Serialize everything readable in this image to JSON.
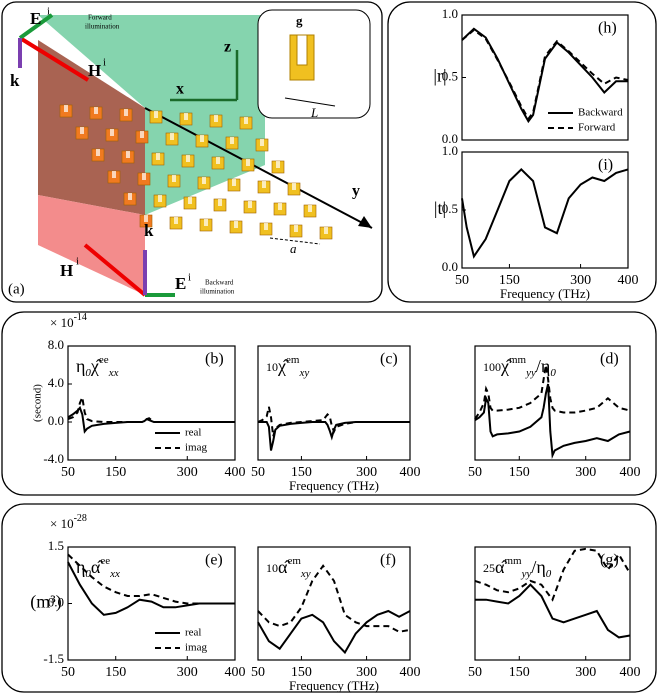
{
  "illustration": {
    "labels": [
      "E",
      "i",
      "Forward",
      "illumination",
      "H",
      "i",
      "k",
      "z",
      "x",
      "g",
      "L",
      "y",
      "a",
      "k",
      "H",
      "i",
      "E",
      "i",
      "Backward",
      "illumination",
      "(a)"
    ]
  },
  "chart_data": [
    {
      "type": "line",
      "panel_label": "(h)",
      "ylabel": "|r|",
      "x": [
        50,
        75,
        100,
        125,
        150,
        175,
        190,
        200,
        225,
        250,
        275,
        300,
        325,
        350,
        375,
        400
      ],
      "xlim": [
        50,
        400
      ],
      "ylim": [
        0,
        1
      ],
      "yticks": [
        {
          "value": 0,
          "label": "0.0"
        },
        {
          "value": 0.5,
          "label": "0.5"
        },
        {
          "value": 1,
          "label": "1.0"
        }
      ],
      "legend": "lower right",
      "series": [
        {
          "name": "Backward",
          "color": "#000",
          "style": "solid",
          "values": [
            0.8,
            0.89,
            0.82,
            0.65,
            0.45,
            0.25,
            0.15,
            0.2,
            0.65,
            0.78,
            0.7,
            0.6,
            0.5,
            0.38,
            0.47,
            0.47
          ]
        },
        {
          "name": "Forward",
          "color": "#000",
          "style": "dashed",
          "values": [
            0.8,
            0.88,
            0.81,
            0.64,
            0.46,
            0.27,
            0.17,
            0.22,
            0.67,
            0.79,
            0.71,
            0.62,
            0.53,
            0.45,
            0.5,
            0.48
          ]
        }
      ]
    },
    {
      "type": "line",
      "panel_label": "(i)",
      "ylabel": "|t|",
      "xlabel": "Frequency (THz)",
      "x": [
        50,
        60,
        75,
        100,
        125,
        150,
        175,
        200,
        225,
        250,
        275,
        300,
        325,
        350,
        375,
        400
      ],
      "xlim": [
        50,
        400
      ],
      "xticks": [
        50,
        150,
        300,
        400
      ],
      "ylim": [
        0,
        1
      ],
      "yticks": [
        {
          "value": 0,
          "label": "0.0"
        },
        {
          "value": 0.5,
          "label": "0.5"
        },
        {
          "value": 1,
          "label": "1.0"
        }
      ],
      "series": [
        {
          "color": "#000",
          "style": "solid",
          "values": [
            0.6,
            0.35,
            0.1,
            0.25,
            0.5,
            0.75,
            0.85,
            0.75,
            0.35,
            0.3,
            0.6,
            0.72,
            0.78,
            0.75,
            0.82,
            0.85
          ]
        }
      ]
    },
    {
      "type": "line",
      "panel_label": "(b)",
      "ylabel": "(second)",
      "scale": "× 10",
      "scale_exp": "-14",
      "annotation": [
        {
          "text": "η",
          "shift": "base"
        },
        {
          "text": "0",
          "shift": "sub"
        },
        {
          "text": "χ̂",
          "shift": "base"
        },
        {
          "text": "ee",
          "shift": "sup"
        },
        {
          "text": "xx",
          "shift": "sub"
        }
      ],
      "x": [
        50,
        60,
        70,
        75,
        80,
        85,
        90,
        100,
        125,
        150,
        175,
        200,
        205,
        210,
        215,
        220,
        225,
        230,
        250,
        275,
        300,
        325,
        350,
        375,
        400
      ],
      "xlim": [
        50,
        400
      ],
      "xticks": [
        50,
        150,
        300,
        400
      ],
      "ylim": [
        -4,
        8
      ],
      "yticks": [
        {
          "value": -4,
          "label": "-4.0"
        },
        {
          "value": 0,
          "label": "0.0"
        },
        {
          "value": 4,
          "label": "4.0"
        },
        {
          "value": 8,
          "label": "8.0"
        }
      ],
      "legend": "lower right",
      "series": [
        {
          "name": "real",
          "color": "#000",
          "style": "solid",
          "values": [
            0.5,
            0.8,
            1.2,
            1.5,
            0.8,
            -1,
            -0.7,
            -0.4,
            -0.2,
            -0.1,
            0,
            0,
            0,
            0.1,
            0.3,
            0.2,
            0.1,
            0,
            0,
            0,
            0,
            0,
            0,
            0,
            0
          ]
        },
        {
          "name": "imag",
          "color": "#000",
          "style": "dashed",
          "values": [
            0.3,
            0.5,
            1,
            2,
            2.6,
            1,
            0.3,
            0.1,
            0,
            0,
            0,
            0,
            0,
            0.1,
            0.3,
            0.4,
            0.2,
            0,
            0,
            0,
            0,
            0,
            0,
            0,
            0
          ]
        }
      ]
    },
    {
      "type": "line",
      "panel_label": "(c)",
      "xlabel": "Frequency (THz)",
      "annotation": [
        {
          "text": "10",
          "shift": "small"
        },
        {
          "text": "χ̂",
          "shift": "base"
        },
        {
          "text": "em",
          "shift": "sup"
        },
        {
          "text": "xy",
          "shift": "sub"
        }
      ],
      "x": [
        50,
        60,
        70,
        75,
        80,
        85,
        90,
        100,
        125,
        150,
        175,
        200,
        205,
        210,
        215,
        220,
        225,
        230,
        250,
        275,
        300,
        325,
        350,
        375,
        400
      ],
      "xlim": [
        50,
        400
      ],
      "xticks": [
        50,
        150,
        300,
        400
      ],
      "ylim": [
        -4,
        8
      ],
      "series": [
        {
          "color": "#000",
          "style": "solid",
          "values": [
            0,
            0,
            0,
            -0.5,
            -3,
            -2,
            -0.8,
            -0.4,
            -0.2,
            -0.1,
            0,
            0,
            0,
            -0.3,
            -0.9,
            -1.6,
            -0.8,
            -0.3,
            -0.1,
            0,
            0,
            0,
            0,
            0,
            0
          ]
        },
        {
          "color": "#000",
          "style": "dashed",
          "values": [
            0,
            0.2,
            0.6,
            1.6,
            0.5,
            -1.5,
            -0.7,
            -0.3,
            -0.1,
            0,
            0.1,
            0.2,
            0.5,
            0.8,
            0.6,
            -0.4,
            -1,
            -0.5,
            -0.2,
            0,
            0,
            0,
            0,
            0,
            0
          ]
        }
      ]
    },
    {
      "type": "line",
      "panel_label": "(d)",
      "annotation": [
        {
          "text": "100",
          "shift": "small"
        },
        {
          "text": "χ̂",
          "shift": "base"
        },
        {
          "text": "mm",
          "shift": "sup"
        },
        {
          "text": "yy",
          "shift": "sub"
        },
        {
          "text": "/η",
          "shift": "base"
        },
        {
          "text": "0",
          "shift": "sub"
        }
      ],
      "x": [
        50,
        60,
        70,
        75,
        80,
        85,
        90,
        100,
        125,
        150,
        175,
        200,
        205,
        210,
        215,
        220,
        225,
        230,
        250,
        275,
        300,
        325,
        350,
        375,
        400
      ],
      "xlim": [
        50,
        400
      ],
      "xticks": [
        50,
        150,
        300,
        400
      ],
      "ylim": [
        -4,
        8
      ],
      "series": [
        {
          "color": "#000",
          "style": "solid",
          "values": [
            0.2,
            0.5,
            1,
            2.5,
            2,
            -1,
            -1.5,
            -1.3,
            -1.2,
            -1,
            -0.5,
            0.5,
            1.5,
            3,
            4,
            -1,
            -3.5,
            -3,
            -2.5,
            -2.2,
            -2,
            -1.7,
            -2,
            -1.3,
            -1
          ]
        },
        {
          "color": "#000",
          "style": "dashed",
          "values": [
            0.3,
            1,
            2,
            3.5,
            3,
            1.5,
            1.2,
            1.2,
            1.3,
            1.5,
            2,
            3,
            4.5,
            6,
            4.5,
            2.5,
            1.5,
            1.2,
            1,
            1,
            1.2,
            1.5,
            2.5,
            1.5,
            1.2
          ]
        }
      ]
    },
    {
      "type": "line",
      "panel_label": "(e)",
      "ylabel": "(m³)",
      "scale": "× 10",
      "scale_exp": "-28",
      "annotation": [
        {
          "text": "η",
          "shift": "base"
        },
        {
          "text": "0",
          "shift": "sub"
        },
        {
          "text": "α̂",
          "shift": "base"
        },
        {
          "text": "ee",
          "shift": "sup"
        },
        {
          "text": "xx",
          "shift": "sub"
        }
      ],
      "x": [
        50,
        75,
        100,
        125,
        150,
        175,
        200,
        225,
        250,
        275,
        300,
        325,
        350,
        375,
        400
      ],
      "xlim": [
        50,
        400
      ],
      "xticks": [
        50,
        150,
        300,
        400
      ],
      "ylim": [
        -1.5,
        1.5
      ],
      "yticks": [
        {
          "value": -1.5,
          "label": "-1.5"
        },
        {
          "value": 0,
          "label": "0.0"
        },
        {
          "value": 1.5,
          "label": "1.5"
        }
      ],
      "legend": "lower right",
      "series": [
        {
          "name": "real",
          "color": "#000",
          "style": "solid",
          "values": [
            1.1,
            0.5,
            0,
            -0.3,
            -0.25,
            -0.1,
            0.1,
            0.05,
            -0.1,
            -0.1,
            -0.05,
            0,
            0,
            0,
            0
          ]
        },
        {
          "name": "imag",
          "color": "#000",
          "style": "dashed",
          "values": [
            1.3,
            1,
            0.7,
            0.45,
            0.3,
            0.2,
            0.2,
            0.25,
            0.15,
            0.05,
            0,
            0,
            0,
            0,
            0
          ]
        }
      ]
    },
    {
      "type": "line",
      "panel_label": "(f)",
      "xlabel": "Frequency (THz)",
      "annotation": [
        {
          "text": "10",
          "shift": "small"
        },
        {
          "text": "α̂",
          "shift": "base"
        },
        {
          "text": "em",
          "shift": "sup"
        },
        {
          "text": "xy",
          "shift": "sub"
        }
      ],
      "x": [
        50,
        75,
        100,
        125,
        150,
        175,
        200,
        225,
        250,
        275,
        300,
        325,
        350,
        375,
        400
      ],
      "xlim": [
        50,
        400
      ],
      "xticks": [
        50,
        150,
        300,
        400
      ],
      "ylim": [
        -1.5,
        1.5
      ],
      "series": [
        {
          "color": "#000",
          "style": "solid",
          "values": [
            -0.5,
            -1,
            -1.2,
            -0.8,
            -0.4,
            -0.3,
            -0.5,
            -1,
            -1.3,
            -0.8,
            -0.5,
            -0.3,
            -0.2,
            -0.35,
            -0.2
          ]
        },
        {
          "color": "#000",
          "style": "dashed",
          "values": [
            -0.2,
            -0.5,
            -0.6,
            -0.5,
            -0.1,
            0.6,
            1,
            0.6,
            -0.3,
            -0.5,
            -0.6,
            -0.6,
            -0.6,
            -0.75,
            -0.7
          ]
        }
      ]
    },
    {
      "type": "line",
      "panel_label": "(g)",
      "annotation": [
        {
          "text": "25",
          "shift": "small"
        },
        {
          "text": "α̂",
          "shift": "base"
        },
        {
          "text": "mm",
          "shift": "sup"
        },
        {
          "text": "yy",
          "shift": "sub"
        },
        {
          "text": "/η",
          "shift": "base"
        },
        {
          "text": "0",
          "shift": "sub"
        }
      ],
      "x": [
        50,
        75,
        100,
        125,
        150,
        175,
        200,
        225,
        250,
        275,
        300,
        325,
        350,
        375,
        400
      ],
      "xlim": [
        50,
        400
      ],
      "xticks": [
        50,
        150,
        300,
        400
      ],
      "ylim": [
        -1.5,
        1.5
      ],
      "series": [
        {
          "color": "#000",
          "style": "solid",
          "values": [
            0.1,
            0.1,
            0.05,
            0,
            0.2,
            0.5,
            0.2,
            -0.4,
            -0.5,
            -0.4,
            -0.3,
            -0.2,
            -0.7,
            -0.9,
            -0.85
          ]
        },
        {
          "color": "#000",
          "style": "dashed",
          "values": [
            0.6,
            0.5,
            0.35,
            0.3,
            0.4,
            0.6,
            0.5,
            0.1,
            0.9,
            1.4,
            1.45,
            1.4,
            0.9,
            1.3,
            0.8
          ]
        }
      ]
    }
  ]
}
